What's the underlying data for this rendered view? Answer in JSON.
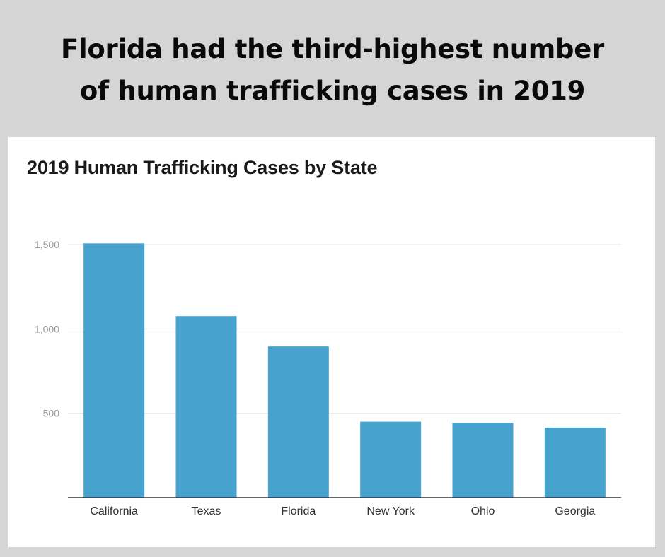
{
  "headline": {
    "line1": "Florida had the third-highest number",
    "line2": "of human trafficking cases in 2019"
  },
  "chart_data": {
    "type": "bar",
    "title": "2019 Human Trafficking Cases by State",
    "xlabel": "",
    "ylabel": "",
    "categories": [
      "California",
      "Texas",
      "Florida",
      "New York",
      "Ohio",
      "Georgia"
    ],
    "values": [
      1507,
      1076,
      896,
      450,
      444,
      415
    ],
    "ylim": [
      0,
      1500
    ],
    "yticks": [
      500,
      1000,
      1500
    ],
    "ytick_labels": [
      "500",
      "1,000",
      "1,500"
    ],
    "grid": true,
    "legend": "none",
    "bar_color": "#47a2ce"
  },
  "colors": {
    "background": "#d5d5d5",
    "card": "#ffffff",
    "bar": "#47a2ce",
    "gridline": "#e8e8e8",
    "axis": "#333333"
  }
}
